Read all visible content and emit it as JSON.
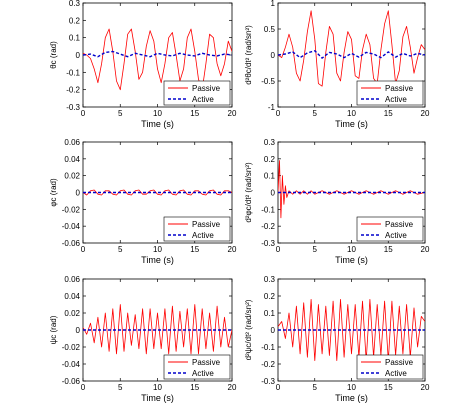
{
  "chart_data": [
    {
      "type": "line",
      "xlabel": "Time (s)",
      "ylabel": "θc (rad)",
      "xlim": [
        0,
        20
      ],
      "ylim": [
        -0.3,
        0.3
      ],
      "xticks": [
        "0",
        "5",
        "10",
        "15",
        "20"
      ],
      "yticks": [
        "-0.3",
        "-0.2",
        "-0.1",
        "0",
        "0.1",
        "0.2",
        "0.3"
      ],
      "legend_position": "bottom-right",
      "series": [
        {
          "name": "Passive",
          "color": "#ff0000",
          "style": "solid",
          "x": [
            0,
            0.5,
            1,
            1.5,
            2,
            2.5,
            3,
            3.5,
            4,
            4.5,
            5,
            5.5,
            6,
            6.5,
            7,
            7.5,
            8,
            8.5,
            9,
            9.5,
            10,
            10.5,
            11,
            11.5,
            12,
            12.5,
            13,
            13.5,
            14,
            14.5,
            15,
            15.5,
            16,
            16.5,
            17,
            17.5,
            18,
            18.5,
            19,
            19.5,
            20
          ],
          "y": [
            0.01,
            0.0,
            -0.02,
            -0.08,
            -0.16,
            -0.05,
            0.1,
            0.15,
            0.02,
            -0.15,
            -0.2,
            -0.05,
            0.12,
            0.15,
            0.02,
            -0.14,
            -0.1,
            0.05,
            0.14,
            0.08,
            -0.08,
            -0.16,
            -0.05,
            0.1,
            0.13,
            0.0,
            -0.15,
            -0.08,
            0.1,
            0.15,
            0.02,
            -0.14,
            -0.2,
            -0.05,
            0.12,
            0.1,
            -0.05,
            -0.12,
            -0.05,
            0.08,
            0.02
          ]
        },
        {
          "name": "Active",
          "color": "#0000cc",
          "style": "dashed",
          "x": [
            0,
            1,
            2,
            3,
            4,
            5,
            6,
            7,
            8,
            9,
            10,
            11,
            12,
            13,
            14,
            15,
            16,
            17,
            18,
            19,
            20
          ],
          "y": [
            0.0,
            0.005,
            -0.01,
            0.015,
            0.02,
            0.005,
            -0.01,
            0.01,
            0.0,
            -0.01,
            0.01,
            0.0,
            -0.005,
            0.01,
            0.0,
            -0.005,
            0.01,
            0.0,
            -0.005,
            0.005,
            0.0
          ]
        }
      ]
    },
    {
      "type": "line",
      "xlabel": "Time (s)",
      "ylabel": "d²θc/dt² (rad/sn²)",
      "xlim": [
        0,
        20
      ],
      "ylim": [
        -1,
        1
      ],
      "xticks": [
        "0",
        "5",
        "10",
        "15",
        "20"
      ],
      "yticks": [
        "-1",
        "-0.5",
        "0",
        "0.5",
        "1"
      ],
      "legend_position": "bottom-right",
      "series": [
        {
          "name": "Passive",
          "color": "#ff0000",
          "style": "solid",
          "x": [
            0,
            0.5,
            1,
            1.5,
            2,
            2.5,
            3,
            3.5,
            4,
            4.5,
            5,
            5.5,
            6,
            6.5,
            7,
            7.5,
            8,
            8.5,
            9,
            9.5,
            10,
            10.5,
            11,
            11.5,
            12,
            12.5,
            13,
            13.5,
            14,
            14.5,
            15,
            15.5,
            16,
            16.5,
            17,
            17.5,
            18,
            18.5,
            19,
            19.5,
            20
          ],
          "y": [
            0.0,
            -0.05,
            0.15,
            0.4,
            0.15,
            -0.35,
            -0.5,
            -0.1,
            0.45,
            0.85,
            0.3,
            -0.55,
            -0.6,
            0.05,
            0.55,
            0.4,
            -0.35,
            -0.5,
            0.05,
            0.45,
            0.3,
            -0.4,
            -0.45,
            0.1,
            0.4,
            0.2,
            -0.45,
            -0.55,
            0.1,
            0.6,
            0.85,
            0.2,
            -0.55,
            -0.3,
            0.35,
            0.55,
            0.15,
            -0.35,
            -0.05,
            0.2,
            0.1
          ]
        },
        {
          "name": "Active",
          "color": "#0000cc",
          "style": "dashed",
          "x": [
            0,
            1,
            2,
            3,
            4,
            5,
            6,
            7,
            8,
            9,
            10,
            11,
            12,
            13,
            14,
            15,
            16,
            17,
            18,
            19,
            20
          ],
          "y": [
            0.0,
            0.02,
            0.06,
            -0.05,
            0.04,
            0.08,
            -0.06,
            0.05,
            0.02,
            -0.05,
            0.03,
            -0.04,
            0.05,
            0.02,
            -0.05,
            0.06,
            -0.04,
            0.03,
            -0.02,
            0.03,
            0.0
          ]
        }
      ]
    },
    {
      "type": "line",
      "xlabel": "Time (s)",
      "ylabel": "φc (rad)",
      "xlim": [
        0,
        20
      ],
      "ylim": [
        -0.06,
        0.06
      ],
      "xticks": [
        "0",
        "5",
        "10",
        "15",
        "20"
      ],
      "yticks": [
        "-0.06",
        "-0.04",
        "-0.02",
        "0",
        "0.02",
        "0.04",
        "0.06"
      ],
      "legend_position": "bottom-right",
      "series": [
        {
          "name": "Passive",
          "color": "#ff0000",
          "style": "solid",
          "x": [
            0,
            0.5,
            1,
            1.5,
            2,
            2.5,
            3,
            3.5,
            4,
            4.5,
            5,
            5.5,
            6,
            6.5,
            7,
            7.5,
            8,
            8.5,
            9,
            9.5,
            10,
            10.5,
            11,
            11.5,
            12,
            12.5,
            13,
            13.5,
            14,
            14.5,
            15,
            15.5,
            16,
            16.5,
            17,
            17.5,
            18,
            18.5,
            19,
            19.5,
            20
          ],
          "y": [
            0.0,
            -0.003,
            0.002,
            0.003,
            -0.002,
            -0.003,
            0.002,
            0.002,
            -0.002,
            -0.003,
            0.002,
            0.003,
            -0.002,
            -0.003,
            0.002,
            0.003,
            -0.002,
            -0.002,
            0.002,
            0.003,
            -0.002,
            -0.003,
            0.002,
            0.003,
            -0.002,
            -0.003,
            0.002,
            0.003,
            -0.002,
            -0.003,
            0.002,
            0.002,
            -0.002,
            -0.003,
            0.002,
            0.003,
            -0.002,
            -0.003,
            0.002,
            0.002,
            0.0
          ]
        },
        {
          "name": "Active",
          "color": "#0000cc",
          "style": "dashed",
          "x": [
            0,
            5,
            10,
            15,
            20
          ],
          "y": [
            0.0,
            0.0,
            0.0,
            0.0,
            0.0
          ]
        }
      ]
    },
    {
      "type": "line",
      "xlabel": "Time (s)",
      "ylabel": "d²φc/dt² (rad/sn²)",
      "xlim": [
        0,
        20
      ],
      "ylim": [
        -0.3,
        0.3
      ],
      "xticks": [
        "0",
        "5",
        "10",
        "15",
        "20"
      ],
      "yticks": [
        "-0.3",
        "-0.2",
        "-0.1",
        "0",
        "0.1",
        "0.2",
        "0.3"
      ],
      "legend_position": "bottom-right",
      "series": [
        {
          "name": "Passive",
          "color": "#ff0000",
          "style": "solid",
          "x": [
            0,
            0.2,
            0.4,
            0.6,
            0.8,
            1.0,
            1.2,
            1.5,
            2,
            2.5,
            3,
            3.5,
            4,
            4.5,
            5,
            6,
            7,
            8,
            9,
            10,
            11,
            12,
            13,
            14,
            15,
            16,
            17,
            18,
            19,
            20
          ],
          "y": [
            0.0,
            0.19,
            -0.15,
            0.1,
            -0.07,
            0.04,
            -0.03,
            0.01,
            -0.01,
            0.01,
            -0.01,
            0.01,
            -0.01,
            0.01,
            -0.01,
            0.01,
            -0.01,
            0.01,
            -0.01,
            0.01,
            -0.01,
            0.01,
            -0.01,
            0.01,
            -0.01,
            0.01,
            -0.01,
            0.01,
            -0.01,
            0.0
          ]
        },
        {
          "name": "Active",
          "color": "#0000cc",
          "style": "dashed",
          "x": [
            0,
            5,
            10,
            15,
            20
          ],
          "y": [
            0.0,
            0.0,
            0.0,
            0.0,
            0.0
          ]
        }
      ]
    },
    {
      "type": "line",
      "xlabel": "Time (s)",
      "ylabel": "ψc (rad)",
      "xlim": [
        0,
        20
      ],
      "ylim": [
        -0.06,
        0.06
      ],
      "xticks": [
        "0",
        "5",
        "10",
        "15",
        "20"
      ],
      "yticks": [
        "-0.06",
        "-0.04",
        "-0.02",
        "0",
        "0.02",
        "0.04",
        "0.06"
      ],
      "legend_position": "bottom-right",
      "series": [
        {
          "name": "Passive",
          "color": "#ff0000",
          "style": "solid",
          "x": [
            0,
            0.5,
            1,
            1.5,
            2,
            2.5,
            3,
            3.5,
            4,
            4.5,
            5,
            5.5,
            6,
            6.5,
            7,
            7.5,
            8,
            8.5,
            9,
            9.5,
            10,
            10.5,
            11,
            11.5,
            12,
            12.5,
            13,
            13.5,
            14,
            14.5,
            15,
            15.5,
            16,
            16.5,
            17,
            17.5,
            18,
            18.5,
            19,
            19.5,
            20
          ],
          "y": [
            0.003,
            -0.005,
            0.008,
            -0.015,
            0.015,
            -0.02,
            0.02,
            -0.025,
            0.025,
            -0.028,
            0.03,
            -0.025,
            0.02,
            -0.018,
            0.018,
            -0.022,
            0.025,
            -0.028,
            0.025,
            -0.022,
            0.02,
            -0.022,
            0.025,
            -0.028,
            0.028,
            -0.025,
            0.022,
            -0.02,
            0.025,
            -0.028,
            0.03,
            -0.028,
            0.025,
            -0.022,
            0.02,
            -0.025,
            0.028,
            -0.02,
            0.015,
            -0.02,
            0.0
          ]
        },
        {
          "name": "Active",
          "color": "#0000cc",
          "style": "dashed",
          "x": [
            0,
            5,
            10,
            15,
            20
          ],
          "y": [
            0.0,
            0.0,
            0.0,
            0.0,
            0.0
          ]
        }
      ]
    },
    {
      "type": "line",
      "xlabel": "Time (s)",
      "ylabel": "d²ψc/dt² (rad/sn²)",
      "xlim": [
        0,
        20
      ],
      "ylim": [
        -0.3,
        0.3
      ],
      "xticks": [
        "0",
        "5",
        "10",
        "15",
        "20"
      ],
      "yticks": [
        "-0.3",
        "-0.2",
        "-0.1",
        "0",
        "0.1",
        "0.2",
        "0.3"
      ],
      "legend_position": "bottom-right",
      "series": [
        {
          "name": "Passive",
          "color": "#ff0000",
          "style": "solid",
          "x": [
            0,
            0.5,
            1,
            1.5,
            2,
            2.5,
            3,
            3.5,
            4,
            4.5,
            5,
            5.5,
            6,
            6.5,
            7,
            7.5,
            8,
            8.5,
            9,
            9.5,
            10,
            10.5,
            11,
            11.5,
            12,
            12.5,
            13,
            13.5,
            14,
            14.5,
            15,
            15.5,
            16,
            16.5,
            17,
            17.5,
            18,
            18.5,
            19,
            19.5,
            20
          ],
          "y": [
            0.02,
            0.05,
            -0.05,
            0.1,
            -0.1,
            0.14,
            -0.14,
            0.16,
            -0.16,
            0.18,
            -0.18,
            0.15,
            -0.14,
            0.14,
            -0.15,
            0.17,
            -0.18,
            0.18,
            -0.16,
            0.15,
            -0.14,
            0.15,
            -0.16,
            0.17,
            -0.18,
            0.18,
            -0.16,
            0.15,
            -0.15,
            0.17,
            -0.18,
            0.17,
            -0.15,
            0.14,
            -0.14,
            0.15,
            -0.16,
            0.13,
            -0.1,
            0.08,
            0.05
          ]
        },
        {
          "name": "Active",
          "color": "#0000cc",
          "style": "dashed",
          "x": [
            0,
            5,
            10,
            15,
            20
          ],
          "y": [
            0.0,
            0.0,
            0.0,
            0.0,
            0.0
          ]
        }
      ]
    }
  ]
}
